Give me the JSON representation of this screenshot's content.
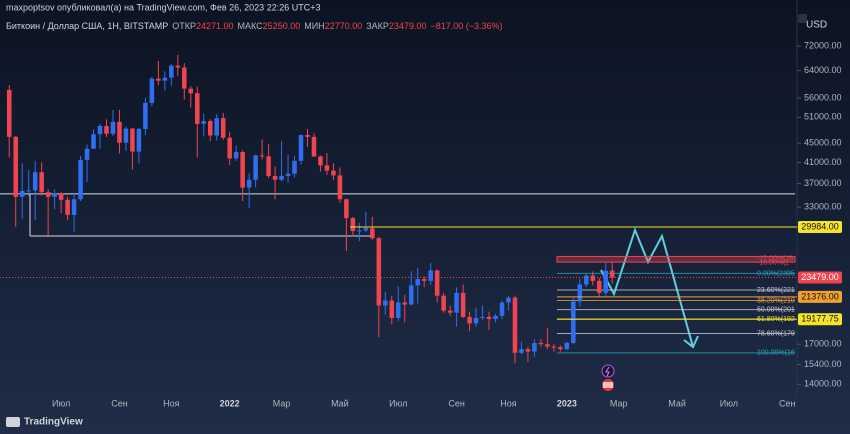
{
  "header": {
    "author_line": "maxpoptsov опубликовал(а) на TradingView.com, Фев 26, 2023 22:26 UTC+3",
    "symbol": "Биткоин / Доллар США, 1Н, BITSTAMP",
    "ohlc": [
      {
        "key": "ОТКР",
        "value": "24271.00"
      },
      {
        "key": "МАКС",
        "value": "25250.00"
      },
      {
        "key": "МИН",
        "value": "22770.00"
      },
      {
        "key": "ЗАКР",
        "value": "23479.00"
      }
    ],
    "change": "−817.00 (−3.36%)"
  },
  "currency": "USD",
  "footer": "TradingView",
  "chart_data": {
    "type": "candlestick",
    "log_scale": true,
    "grid": false,
    "up_color": "#2f6ef0",
    "down_color": "#f0444f",
    "ylim": [
      13100,
      82500
    ],
    "yticks": [
      {
        "value": 72000,
        "label": "72000.00"
      },
      {
        "value": 64000,
        "label": "64000.00"
      },
      {
        "value": 56000,
        "label": "56000.00"
      },
      {
        "value": 51000,
        "label": "51000.00"
      },
      {
        "value": 45000,
        "label": "45000.00"
      },
      {
        "value": 41000,
        "label": "41000.00"
      },
      {
        "value": 37000,
        "label": "37000.00"
      },
      {
        "value": 33000,
        "label": "33000.00"
      },
      {
        "value": 17000,
        "label": "17000.00"
      },
      {
        "value": 15400,
        "label": "15400.00"
      },
      {
        "value": 14000,
        "label": "14000.00"
      }
    ],
    "categories": [
      null,
      null,
      null,
      null,
      null,
      null,
      null,
      null,
      "Июл",
      null,
      null,
      null,
      null,
      null,
      null,
      null,
      null,
      "Сен",
      null,
      null,
      null,
      null,
      null,
      null,
      null,
      "Ноя",
      null,
      null,
      null,
      null,
      null,
      null,
      null,
      null,
      "2022",
      null,
      null,
      null,
      null,
      null,
      null,
      null,
      "Мар",
      null,
      null,
      null,
      null,
      null,
      null,
      null,
      null,
      "Май",
      null,
      null,
      null,
      null,
      null,
      null,
      null,
      null,
      "Июл",
      null,
      null,
      null,
      null,
      null,
      null,
      null,
      null,
      "Сен",
      null,
      null,
      null,
      null,
      null,
      null,
      null,
      "Ноя",
      null,
      null,
      null,
      null,
      null,
      null,
      null,
      null,
      "2023",
      null,
      null,
      null,
      null,
      null,
      null,
      null,
      "Мар",
      null,
      null,
      null,
      null,
      null,
      null,
      null,
      null,
      "Май",
      null,
      null,
      null,
      null,
      null,
      null,
      null,
      "Июл",
      null,
      null,
      null,
      null,
      null,
      null,
      null,
      null,
      "Сен",
      null
    ],
    "open": [
      58250,
      46400,
      34700,
      35700,
      35800,
      39100,
      35500,
      34700,
      35300,
      34200,
      31800,
      34300,
      41500,
      43800,
      47000,
      48900,
      47100,
      49900,
      45100,
      48300,
      43200,
      48200,
      54700,
      61500,
      60900,
      61800,
      65500,
      64900,
      58600,
      57300,
      49400,
      50100,
      46700,
      50800,
      46200,
      41800,
      43100,
      36300,
      37700,
      42400,
      42200,
      38400,
      37700,
      38400,
      38800,
      41300,
      46800,
      46400,
      42200,
      40400,
      39400,
      38500,
      34300,
      31300,
      29400,
      29500,
      29800,
      28400,
      20500,
      21000,
      19300,
      20800,
      20600,
      22600,
      23300,
      23100,
      24300,
      21500,
      20000,
      19800,
      21800,
      19400,
      18800,
      19300,
      19400,
      19200,
      19500,
      20800,
      21300,
      16300,
      16600,
      16400,
      17100,
      17000,
      16800,
      16750,
      16600,
      17100,
      20900,
      22700,
      23700,
      23100,
      21800,
      24271,
      null,
      null,
      null,
      null,
      null,
      null,
      null,
      null,
      null,
      null,
      null,
      null,
      null,
      null,
      null,
      null,
      null,
      null,
      null,
      null,
      null,
      null,
      null,
      null,
      null,
      null,
      null,
      null
    ],
    "high": [
      59600,
      46600,
      40800,
      39500,
      41300,
      41000,
      36000,
      36000,
      35500,
      34700,
      35400,
      42300,
      44700,
      48100,
      49400,
      50500,
      52900,
      52900,
      48800,
      48400,
      48500,
      56000,
      62000,
      67000,
      63700,
      66000,
      69000,
      66300,
      59300,
      59200,
      51900,
      50500,
      51800,
      52100,
      47600,
      44500,
      43500,
      38900,
      42600,
      45800,
      44800,
      40200,
      45400,
      42500,
      42300,
      46900,
      48200,
      47200,
      42400,
      42900,
      40800,
      40000,
      34400,
      31500,
      30600,
      32300,
      31500,
      28600,
      21900,
      21500,
      22500,
      21600,
      24200,
      24600,
      23600,
      25200,
      24400,
      21800,
      20500,
      22400,
      22700,
      19900,
      20300,
      20500,
      19900,
      19700,
      21000,
      21500,
      21500,
      17200,
      16800,
      17400,
      17400,
      18400,
      17000,
      16900,
      17200,
      21300,
      23300,
      23900,
      24200,
      23400,
      25200,
      25250,
      null,
      null,
      null,
      null,
      null,
      null,
      null,
      null,
      null,
      null,
      null,
      null,
      null,
      null,
      null,
      null,
      null,
      null,
      null,
      null,
      null,
      null,
      null,
      null,
      null,
      null,
      null,
      null
    ],
    "low": [
      42000,
      30000,
      31200,
      34800,
      31000,
      34900,
      28800,
      32700,
      32100,
      31000,
      29300,
      34000,
      37300,
      43800,
      43800,
      46400,
      46600,
      42800,
      43400,
      39600,
      40800,
      46800,
      53800,
      59600,
      58100,
      59400,
      62300,
      55600,
      53500,
      42000,
      46500,
      45500,
      45600,
      45700,
      40500,
      41300,
      34000,
      32900,
      36300,
      41600,
      38000,
      34300,
      37400,
      37200,
      38100,
      40600,
      44200,
      42100,
      39200,
      38600,
      37600,
      33700,
      26700,
      28600,
      28000,
      29200,
      28200,
      17600,
      19600,
      18700,
      19000,
      18900,
      20500,
      20700,
      22400,
      22700,
      20800,
      19800,
      19500,
      18500,
      19300,
      18100,
      18500,
      19100,
      18200,
      18900,
      19200,
      20000,
      15500,
      16200,
      15600,
      16000,
      16800,
      16600,
      16400,
      16400,
      16500,
      17000,
      20400,
      22400,
      22600,
      21400,
      21500,
      22770,
      null,
      null,
      null,
      null,
      null,
      null,
      null,
      null,
      null,
      null,
      null,
      null,
      null,
      null,
      null,
      null,
      null,
      null,
      null,
      null,
      null,
      null,
      null,
      null,
      null,
      null,
      null,
      null
    ],
    "close": [
      46400,
      34700,
      35700,
      35800,
      39100,
      35500,
      34700,
      35300,
      34200,
      31800,
      34300,
      41500,
      43800,
      47000,
      48900,
      47100,
      49900,
      45100,
      48300,
      43200,
      48200,
      54700,
      61500,
      60900,
      61800,
      65500,
      64900,
      58600,
      57300,
      49400,
      50100,
      46700,
      50800,
      46200,
      41800,
      43100,
      36300,
      37700,
      42400,
      42200,
      38400,
      37700,
      38400,
      38800,
      41300,
      46800,
      46400,
      42200,
      40400,
      39400,
      38500,
      34300,
      31300,
      29400,
      29500,
      29800,
      28400,
      20500,
      21000,
      19300,
      20800,
      20600,
      22600,
      23300,
      23100,
      24300,
      21500,
      20000,
      19800,
      21800,
      19400,
      18800,
      19300,
      19400,
      19200,
      19500,
      20800,
      21300,
      16300,
      16600,
      16400,
      17100,
      17000,
      16800,
      16750,
      16600,
      17100,
      20900,
      22700,
      23700,
      23100,
      21800,
      24271,
      23479,
      null,
      null,
      null,
      null,
      null,
      null,
      null,
      null,
      null,
      null,
      null,
      null,
      null,
      null,
      null,
      null,
      null,
      null,
      null,
      null,
      null,
      null,
      null,
      null,
      null,
      null,
      null,
      null
    ],
    "price_labels": [
      {
        "value": 29984,
        "label": "29984.00",
        "color": "#f5e52a"
      },
      {
        "value": 23479,
        "label": "23479.00",
        "color": "#f0444f"
      },
      {
        "value": 21376,
        "label": "21376.00",
        "color": "#f0a030"
      },
      {
        "value": 19177.75,
        "label": "19177.75",
        "color": "#f5e52a"
      }
    ],
    "box": {
      "top": 35200,
      "bottom": 28700,
      "color": "#d8dce6"
    },
    "zone": {
      "top": 26000,
      "bottom": 25300,
      "color": "#f0444f",
      "labels": [
        "-17.00%(26",
        "-18.00%(2"
      ]
    },
    "fib_levels": [
      {
        "label": "0.00%(2395",
        "value": 23950,
        "color": "#26a6b8"
      },
      {
        "label": "23.60%(221",
        "value": 22100,
        "color": "#c8ccd6"
      },
      {
        "label": "38.20%(210",
        "value": 21000,
        "color": "#e8a040"
      },
      {
        "label": "50.00%(201",
        "value": 20100,
        "color": "#c8ccd6"
      },
      {
        "label": "61.80%(192",
        "value": 19200,
        "color": "#f5e52a"
      },
      {
        "label": "78.60%(179",
        "value": 17900,
        "color": "#c8ccd6"
      },
      {
        "label": "100.00%(16",
        "value": 16300,
        "color": "#26a6b8"
      }
    ]
  }
}
